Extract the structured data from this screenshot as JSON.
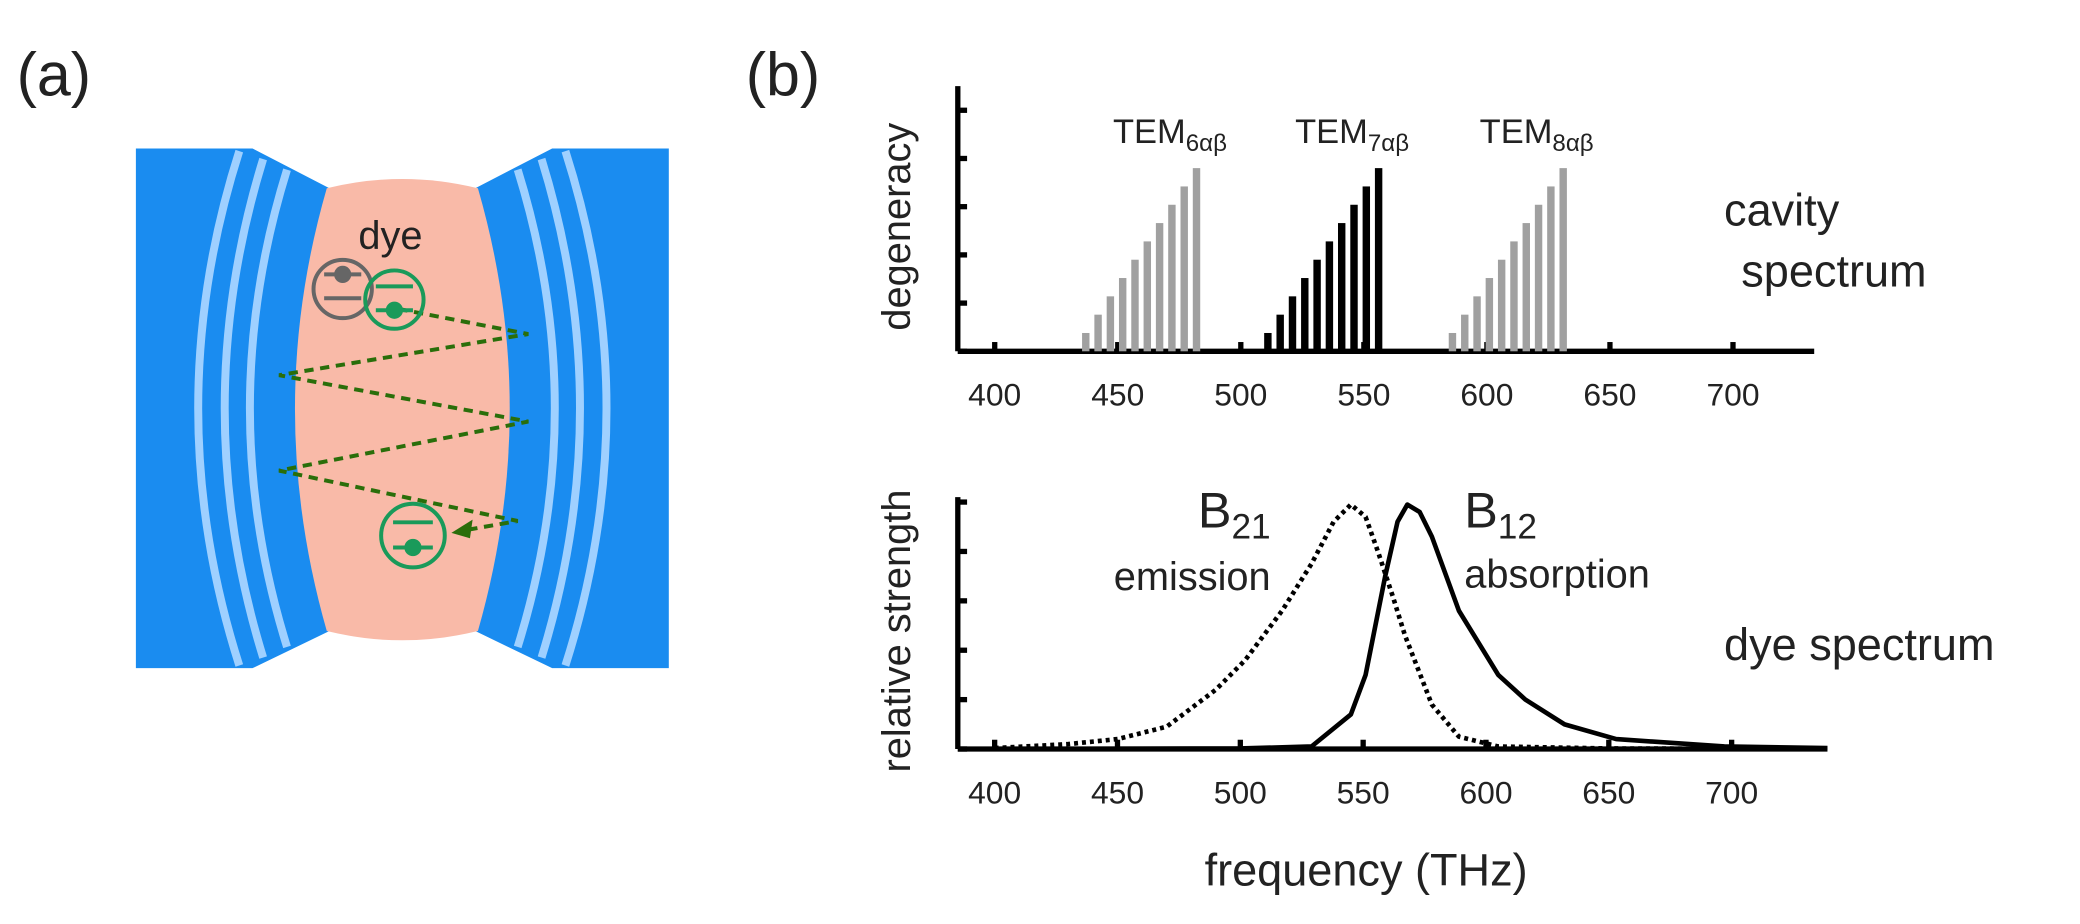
{
  "panel_a": {
    "label": "(a)",
    "medium": "dye"
  },
  "panel_b": {
    "label": "(b)"
  },
  "chart_data": [
    {
      "type": "bar",
      "ylabel": "degeneracy",
      "annotation": [
        "cavity",
        "spectrum"
      ],
      "xlim": [
        385,
        733
      ],
      "xticks": [
        400,
        450,
        500,
        550,
        600,
        650,
        700
      ],
      "ylim": [
        0,
        5.5
      ],
      "yticks": [
        0,
        1,
        2,
        3,
        4,
        5
      ],
      "series": [
        {
          "name": "TEM",
          "subscript": "6αβ",
          "color": "#a0a0a0",
          "x": [
            437,
            442,
            447,
            452,
            457,
            462,
            467,
            472,
            477,
            482
          ],
          "values": [
            0.38,
            0.76,
            1.14,
            1.52,
            1.9,
            2.28,
            2.66,
            3.04,
            3.42,
            3.8
          ]
        },
        {
          "name": "TEM",
          "subscript": "7αβ",
          "color": "#000000",
          "x": [
            511,
            516,
            521,
            526,
            531,
            536,
            541,
            546,
            551,
            556
          ],
          "values": [
            0.38,
            0.76,
            1.14,
            1.52,
            1.9,
            2.28,
            2.66,
            3.04,
            3.42,
            3.8
          ]
        },
        {
          "name": "TEM",
          "subscript": "8αβ",
          "color": "#a0a0a0",
          "x": [
            586,
            591,
            596,
            601,
            606,
            611,
            616,
            621,
            626,
            631
          ],
          "values": [
            0.38,
            0.76,
            1.14,
            1.52,
            1.9,
            2.28,
            2.66,
            3.04,
            3.42,
            3.8
          ]
        }
      ]
    },
    {
      "type": "line",
      "ylabel": "relative strength",
      "xlabel": "frequency (THz)",
      "annotation": [
        "dye spectrum"
      ],
      "xlim": [
        385,
        739
      ],
      "xticks": [
        400,
        450,
        500,
        550,
        600,
        650,
        700
      ],
      "ylim": [
        0,
        5.1
      ],
      "yticks": [
        0,
        1,
        2,
        3,
        4,
        5
      ],
      "series": [
        {
          "name": "B",
          "subscript": "21",
          "description": "emission",
          "color": "#000000",
          "linestyle": "dotted",
          "x": [
            400,
            430,
            450,
            470,
            490,
            502,
            517,
            529,
            538,
            545,
            551,
            556,
            562,
            567,
            578,
            589,
            605,
            650,
            739
          ],
          "values": [
            0.02,
            0.1,
            0.2,
            0.45,
            1.2,
            1.8,
            2.8,
            3.75,
            4.6,
            4.95,
            4.7,
            4.0,
            3.1,
            2.3,
            0.9,
            0.25,
            0.05,
            0.01,
            0
          ]
        },
        {
          "name": "B",
          "subscript": "12",
          "description": "absorption",
          "color": "#000000",
          "linestyle": "solid",
          "x": [
            400,
            500,
            529,
            545,
            551,
            559,
            564,
            568,
            573,
            578,
            589,
            605,
            616,
            632,
            653,
            697,
            739
          ],
          "values": [
            0,
            0.01,
            0.05,
            0.7,
            1.5,
            3.5,
            4.6,
            4.95,
            4.8,
            4.3,
            2.8,
            1.5,
            1.0,
            0.5,
            0.2,
            0.05,
            0.02
          ]
        }
      ]
    }
  ]
}
